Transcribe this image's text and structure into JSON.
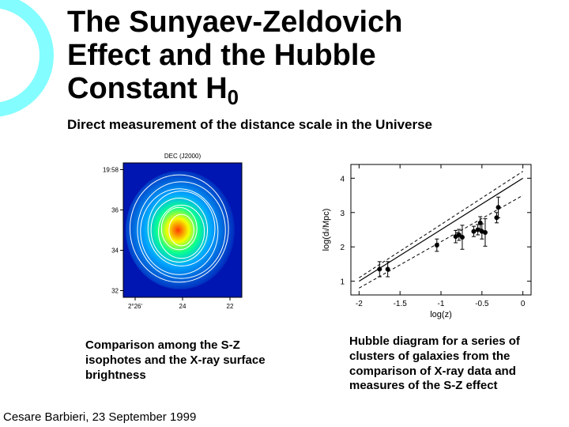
{
  "background_color": "#ffffff",
  "accent_ring_color": "#83fdff",
  "text_color": "#000000",
  "title": {
    "line1": "The Sunyaev-Zeldovich",
    "line2": "Effect and the Hubble",
    "line3_prefix": "Constant H",
    "line3_sub": "0",
    "font_size_pt": 28,
    "font_weight": 700
  },
  "subtitle": "Direct measurement of the distance scale in the Universe",
  "left_figure": {
    "type": "contour-overlay-on-heatmap",
    "axis_label_top": "DEC (J2000)",
    "axis_ticks_left": [
      "19:58",
      "36",
      "34",
      "32"
    ],
    "axis_ticks_bottom": [
      "2°26'",
      "24",
      "22"
    ],
    "heatmap_colors": {
      "low": "#0016b2",
      "mid1": "#00a8ff",
      "mid2": "#0aff90",
      "mid3": "#f5ff00",
      "high": "#ff3a00"
    },
    "contour_color": "#ffffff",
    "contour_levels": 8,
    "panel_background": "#0016b2",
    "frame_color": "#000000",
    "tick_color": "#000000",
    "label_color": "#000000",
    "label_fontsize": 8
  },
  "left_caption": "Comparison among the S-Z isophotes and the X-ray surface brightness",
  "right_figure": {
    "type": "scatter-with-model-lines",
    "xlabel": "log(z)",
    "ylabel": "log(d_L/Mpc)",
    "xlim": [
      -2.1,
      0.1
    ],
    "ylim": [
      0.6,
      4.4
    ],
    "xticks": [
      -2,
      -1.5,
      -1,
      -0.5,
      0
    ],
    "yticks": [
      1,
      2,
      3,
      4
    ],
    "grid": false,
    "axis_color": "#000000",
    "tick_fontsize": 10,
    "label_fontsize": 11,
    "lines": [
      {
        "type": "solid",
        "width": 1.2,
        "color": "#000000",
        "p1": [
          -2.0,
          1.0
        ],
        "p2": [
          0.0,
          4.0
        ]
      },
      {
        "type": "dashed",
        "width": 1.0,
        "color": "#000000",
        "p1": [
          -2.0,
          0.8
        ],
        "p2": [
          0.0,
          3.5
        ]
      },
      {
        "type": "dashed",
        "width": 1.0,
        "color": "#000000",
        "p1": [
          -2.0,
          1.1
        ],
        "p2": [
          0.0,
          4.2
        ]
      }
    ],
    "points": [
      {
        "x": -1.75,
        "y": 1.35,
        "ey": 0.22
      },
      {
        "x": -1.65,
        "y": 1.35,
        "ey": 0.22
      },
      {
        "x": -1.05,
        "y": 2.05,
        "ey": 0.18
      },
      {
        "x": -0.82,
        "y": 2.3,
        "ey": 0.18
      },
      {
        "x": -0.78,
        "y": 2.35,
        "ey": 0.16
      },
      {
        "x": -0.74,
        "y": 2.28,
        "ey": 0.35
      },
      {
        "x": -0.6,
        "y": 2.45,
        "ey": 0.15
      },
      {
        "x": -0.55,
        "y": 2.5,
        "ey": 0.15
      },
      {
        "x": -0.52,
        "y": 2.7,
        "ey": 0.18
      },
      {
        "x": -0.5,
        "y": 2.45,
        "ey": 0.22
      },
      {
        "x": -0.46,
        "y": 2.42,
        "ey": 0.4
      },
      {
        "x": -0.32,
        "y": 2.85,
        "ey": 0.15
      },
      {
        "x": -0.3,
        "y": 3.15,
        "ey": 0.3
      }
    ],
    "marker_color": "#000000",
    "marker_size": 3,
    "errorbar_color": "#000000"
  },
  "right_caption": "Hubble diagram for a series of clusters of galaxies from the comparison of X-ray data and measures of the S-Z effect",
  "footer": {
    "author": "Cesare Barbieri",
    "date": "23 September 1999"
  }
}
